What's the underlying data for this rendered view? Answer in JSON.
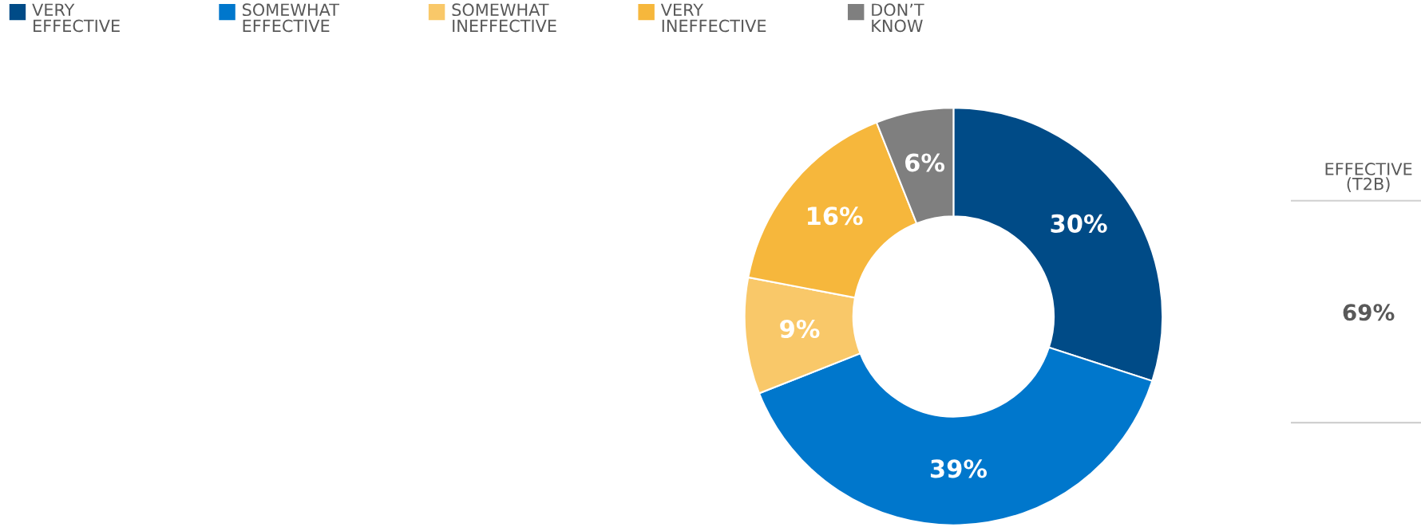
{
  "chart_data": {
    "type": "donut",
    "categories": [
      "VERY\nEFFECTIVE",
      "SOMEWHAT\nEFFECTIVE",
      "SOMEWHAT\nINEFFECTIVE",
      "VERY\nINEFFECTIVE",
      "DON’T\nKNOW"
    ],
    "values": [
      30,
      39,
      9,
      16,
      6
    ],
    "colors": [
      "#004b87",
      "#0077cc",
      "#f9c869",
      "#f6b73c",
      "#7f7f7f"
    ],
    "value_labels": [
      "30%",
      "39%",
      "9%",
      "16%",
      "6%"
    ],
    "legend": "top left",
    "annotations": [
      "EFFECTIVE\n(T2B)",
      "69%"
    ]
  }
}
